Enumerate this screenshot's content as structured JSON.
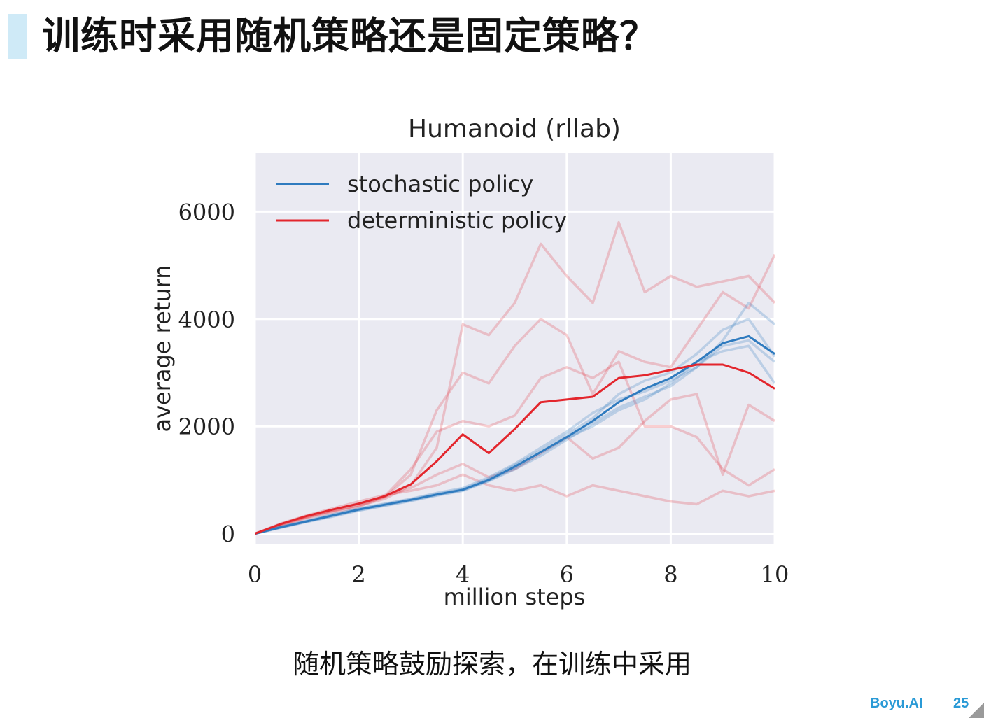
{
  "slide": {
    "title": "训练时采用随机策略还是固定策略？",
    "caption": "随机策略鼓励探索，在训练中采用",
    "brand": "Boyu.AI",
    "page_number": "25"
  },
  "colors": {
    "title_accent": "#cfeaf7",
    "plot_background": "#eaeaf2",
    "stochastic": "#2f7bbf",
    "deterministic": "#e3262d",
    "brand": "#2a9ad6"
  },
  "chart_data": {
    "type": "line",
    "title": "Humanoid (rllab)",
    "xlabel": "million steps",
    "ylabel": "average return",
    "xlim": [
      0,
      10
    ],
    "ylim": [
      -200,
      7100
    ],
    "xticks": [
      0,
      2,
      4,
      6,
      8,
      10
    ],
    "yticks": [
      0,
      2000,
      4000,
      6000
    ],
    "xtick_labels": [
      "0",
      "2",
      "4",
      "6",
      "8",
      "10"
    ],
    "ytick_labels": [
      "0",
      "2000",
      "4000",
      "6000"
    ],
    "grid": true,
    "legend_position": "top-left",
    "x": [
      0,
      0.5,
      1,
      1.5,
      2,
      2.5,
      3,
      3.5,
      4,
      4.5,
      5,
      5.5,
      6,
      6.5,
      7,
      7.5,
      8,
      8.5,
      9,
      9.5,
      10
    ],
    "series": [
      {
        "name": "stochastic policy",
        "role": "mean",
        "values": [
          0,
          120,
          230,
          340,
          450,
          540,
          630,
          730,
          820,
          1000,
          1250,
          1520,
          1800,
          2100,
          2450,
          2700,
          2900,
          3200,
          3550,
          3680,
          3350
        ]
      },
      {
        "name": "deterministic policy",
        "role": "mean",
        "values": [
          0,
          180,
          330,
          450,
          560,
          700,
          920,
          1350,
          1850,
          1500,
          1950,
          2450,
          2500,
          2550,
          2900,
          2950,
          3050,
          3150,
          3150,
          3000,
          2700
        ]
      }
    ],
    "stochastic_runs": [
      [
        0,
        130,
        240,
        360,
        470,
        560,
        650,
        760,
        850,
        1050,
        1300,
        1600,
        1900,
        2250,
        2500,
        2650,
        2850,
        3100,
        3600,
        4300,
        3900
      ],
      [
        0,
        110,
        220,
        320,
        430,
        520,
        610,
        710,
        800,
        980,
        1200,
        1450,
        1750,
        2050,
        2350,
        2550,
        2750,
        3100,
        3500,
        3600,
        3200
      ],
      [
        0,
        125,
        235,
        350,
        460,
        550,
        640,
        740,
        830,
        1020,
        1280,
        1550,
        1850,
        2150,
        2600,
        2850,
        3000,
        3350,
        3800,
        4000,
        3300
      ],
      [
        0,
        115,
        225,
        330,
        440,
        530,
        620,
        720,
        810,
        990,
        1220,
        1500,
        1780,
        2000,
        2300,
        2500,
        2800,
        3200,
        3400,
        3500,
        2800
      ]
    ],
    "deterministic_runs": [
      [
        0,
        170,
        320,
        430,
        520,
        650,
        900,
        1600,
        3900,
        3700,
        4300,
        5400,
        4800,
        4300,
        5800,
        4500,
        4800,
        4600,
        4700,
        4800,
        4300
      ],
      [
        0,
        160,
        300,
        420,
        530,
        680,
        1100,
        2300,
        3000,
        2800,
        3500,
        4000,
        3700,
        2600,
        3400,
        3200,
        3100,
        3800,
        4500,
        4200,
        5200
      ],
      [
        0,
        150,
        290,
        400,
        500,
        700,
        1200,
        1900,
        2100,
        2000,
        2200,
        2900,
        3100,
        2900,
        3200,
        2000,
        2000,
        1800,
        1200,
        900,
        1200
      ],
      [
        0,
        190,
        340,
        470,
        600,
        720,
        800,
        900,
        1100,
        900,
        800,
        900,
        700,
        900,
        800,
        700,
        600,
        550,
        800,
        700,
        800
      ],
      [
        0,
        175,
        310,
        440,
        560,
        690,
        850,
        1100,
        1300,
        1050,
        1200,
        1500,
        1800,
        1400,
        1600,
        2100,
        2500,
        2600,
        1100,
        2400,
        2100
      ]
    ]
  }
}
